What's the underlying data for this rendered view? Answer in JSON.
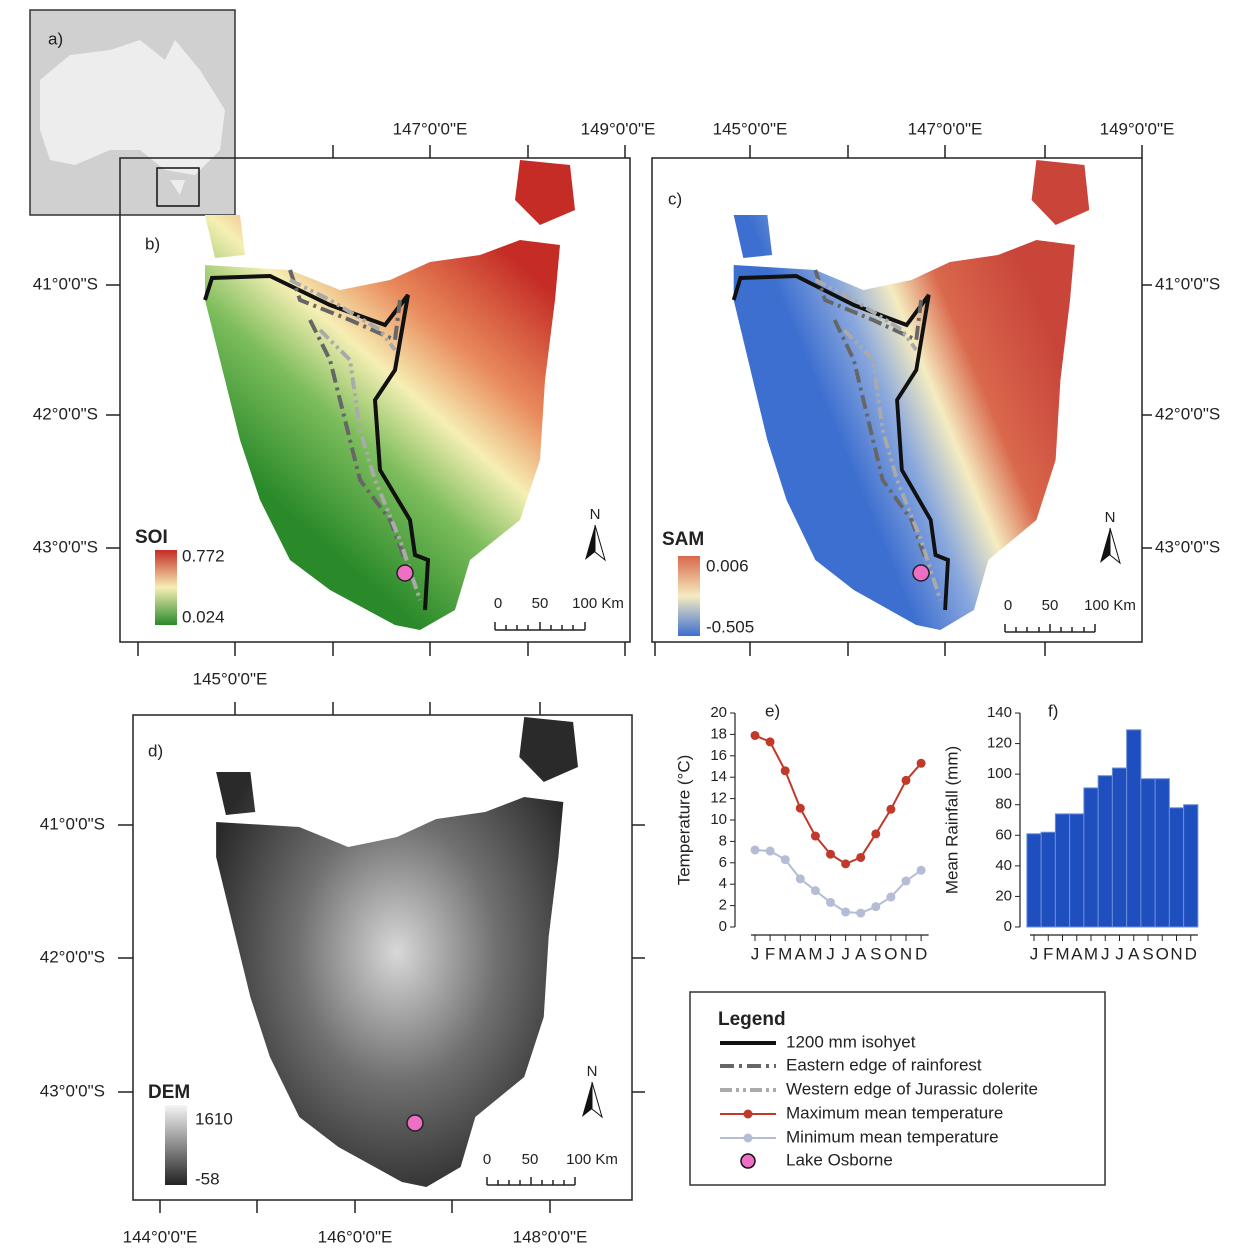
{
  "panels": {
    "a": {
      "label": "a)"
    },
    "b": {
      "label": "b)",
      "top_labels": [
        "147°0'0\"E",
        "149°0'0\"E"
      ],
      "side_labels": [
        "41°0'0\"S",
        "42°0'0\"S",
        "43°0'0\"S"
      ],
      "index": "SOI",
      "index_max": 0.772,
      "index_min": 0.024,
      "scale": [
        0,
        50,
        "100 Km"
      ],
      "north": "N"
    },
    "c": {
      "label": "c)",
      "top_labels": [
        "145°0'0\"E",
        "147°0'0\"E",
        "149°0'0\"E"
      ],
      "side_labels": [
        "41°0'0\"S",
        "42°0'0\"S",
        "43°0'0\"S"
      ],
      "index": "SAM",
      "index_max": 0.006,
      "index_min": -0.505,
      "scale": [
        0,
        50,
        "100 Km"
      ],
      "north": "N"
    },
    "d": {
      "label": "d)",
      "top_labels": [
        "145°0'0\"E"
      ],
      "side_labels": [
        "41°0'0\"S",
        "42°0'0\"S",
        "43°0'0\"S"
      ],
      "bottom_labels": [
        "144°0'0\"E",
        "146°0'0\"E",
        "148°0'0\"E"
      ],
      "index": "DEM",
      "index_max": 1610,
      "index_min": -58,
      "scale": [
        0,
        50,
        "100 Km"
      ],
      "north": "N"
    }
  },
  "chart_data": [
    {
      "type": "line",
      "title": "e)",
      "y_label": "Temperature (°C)",
      "categories": [
        "J",
        "F",
        "M",
        "A",
        "M",
        "J",
        "J",
        "A",
        "S",
        "O",
        "N",
        "D"
      ],
      "series": [
        {
          "name": "Maximum mean temperature",
          "color": "#c0392b",
          "values": [
            17.9,
            17.3,
            14.6,
            11.1,
            8.5,
            6.8,
            5.9,
            6.5,
            8.7,
            11.0,
            13.7,
            15.3
          ]
        },
        {
          "name": "Minimum mean temperature",
          "color": "#b4bcd6",
          "values": [
            7.2,
            7.1,
            6.3,
            4.5,
            3.4,
            2.3,
            1.4,
            1.3,
            1.9,
            2.8,
            4.3,
            5.3
          ]
        }
      ],
      "ylim": [
        0,
        20
      ],
      "yticks": [
        0,
        2,
        4,
        6,
        8,
        10,
        12,
        14,
        16,
        18,
        20
      ]
    },
    {
      "type": "bar",
      "title": "f)",
      "y_label": "Mean Rainfall (mm)",
      "categories": [
        "J",
        "F",
        "M",
        "A",
        "M",
        "J",
        "J",
        "A",
        "S",
        "O",
        "N",
        "D"
      ],
      "values": [
        61,
        62,
        74,
        74,
        91,
        99,
        104,
        129,
        97,
        97,
        78,
        80
      ],
      "color": "#1f4fbf",
      "ylim": [
        0,
        140
      ],
      "yticks": [
        0,
        20,
        40,
        60,
        80,
        100,
        120,
        140
      ]
    }
  ],
  "legend": {
    "title": "Legend",
    "items": [
      "1200 mm isohyet",
      "Eastern edge of rainforest",
      "Western edge of Jurassic dolerite",
      "Lake Osborne"
    ]
  }
}
